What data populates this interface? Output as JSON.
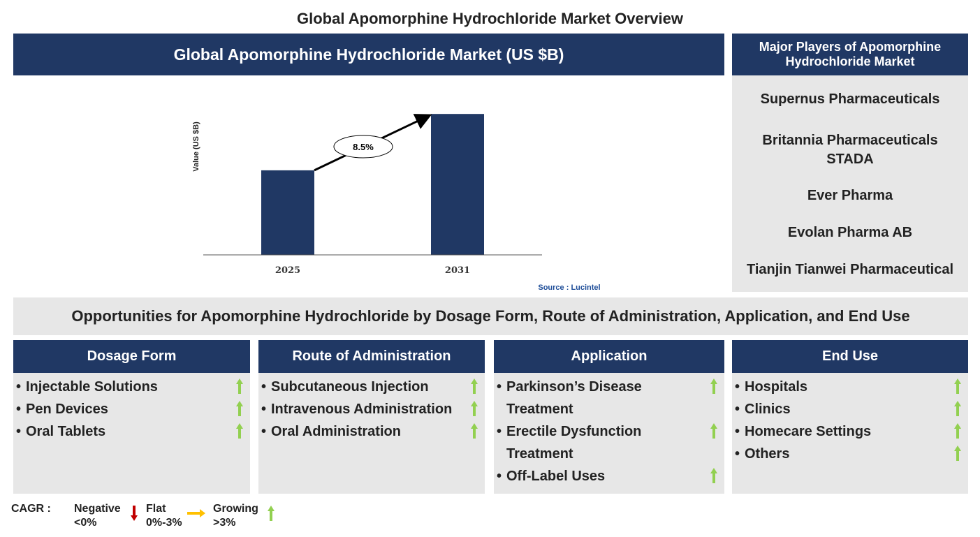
{
  "title": "Global Apomorphine Hydrochloride Market Overview",
  "chart_data": {
    "type": "bar",
    "title": "Global Apomorphine Hydrochloride Market (US $B)",
    "y_label": "Value (US $B)",
    "categories": [
      "2025",
      "2031"
    ],
    "values": [
      0.6,
      1.0
    ],
    "color": "#203864",
    "ylim": [
      0,
      1.1
    ],
    "cagr_label": "8.5%",
    "source": "Source : Lucintel"
  },
  "players": {
    "title": "Major Players of Apomorphine Hydrochloride Market",
    "names": [
      "Supernus Pharmaceuticals",
      "Britannia Pharmaceuticals",
      "STADA",
      "Ever Pharma",
      "Evolan Pharma AB",
      "Tianjin Tianwei Pharmaceutical"
    ]
  },
  "opportunities": {
    "title": "Opportunities for Apomorphine Hydrochloride by Dosage Form, Route of Administration, Application, and End Use",
    "segments": [
      {
        "title": "Dosage Form",
        "items": [
          "Injectable Solutions",
          "Pen Devices",
          "Oral Tablets"
        ]
      },
      {
        "title": "Route of Administration",
        "items": [
          "Subcutaneous Injection",
          "Intravenous Administration",
          "Oral Administration"
        ]
      },
      {
        "title": "Application",
        "items": [
          "Parkinson’s Disease Treatment",
          "Erectile Dysfunction Treatment",
          "Off-Label Uses"
        ]
      },
      {
        "title": "End Use",
        "items": [
          "Hospitals",
          "Clinics",
          "Homecare Settings",
          "Others"
        ]
      }
    ]
  },
  "legend": {
    "label": "CAGR :",
    "negative": "Negative",
    "negative_range": "<0%",
    "flat": "Flat",
    "flat_range": "0%-3%",
    "growing": "Growing",
    "growing_range": ">3%"
  }
}
